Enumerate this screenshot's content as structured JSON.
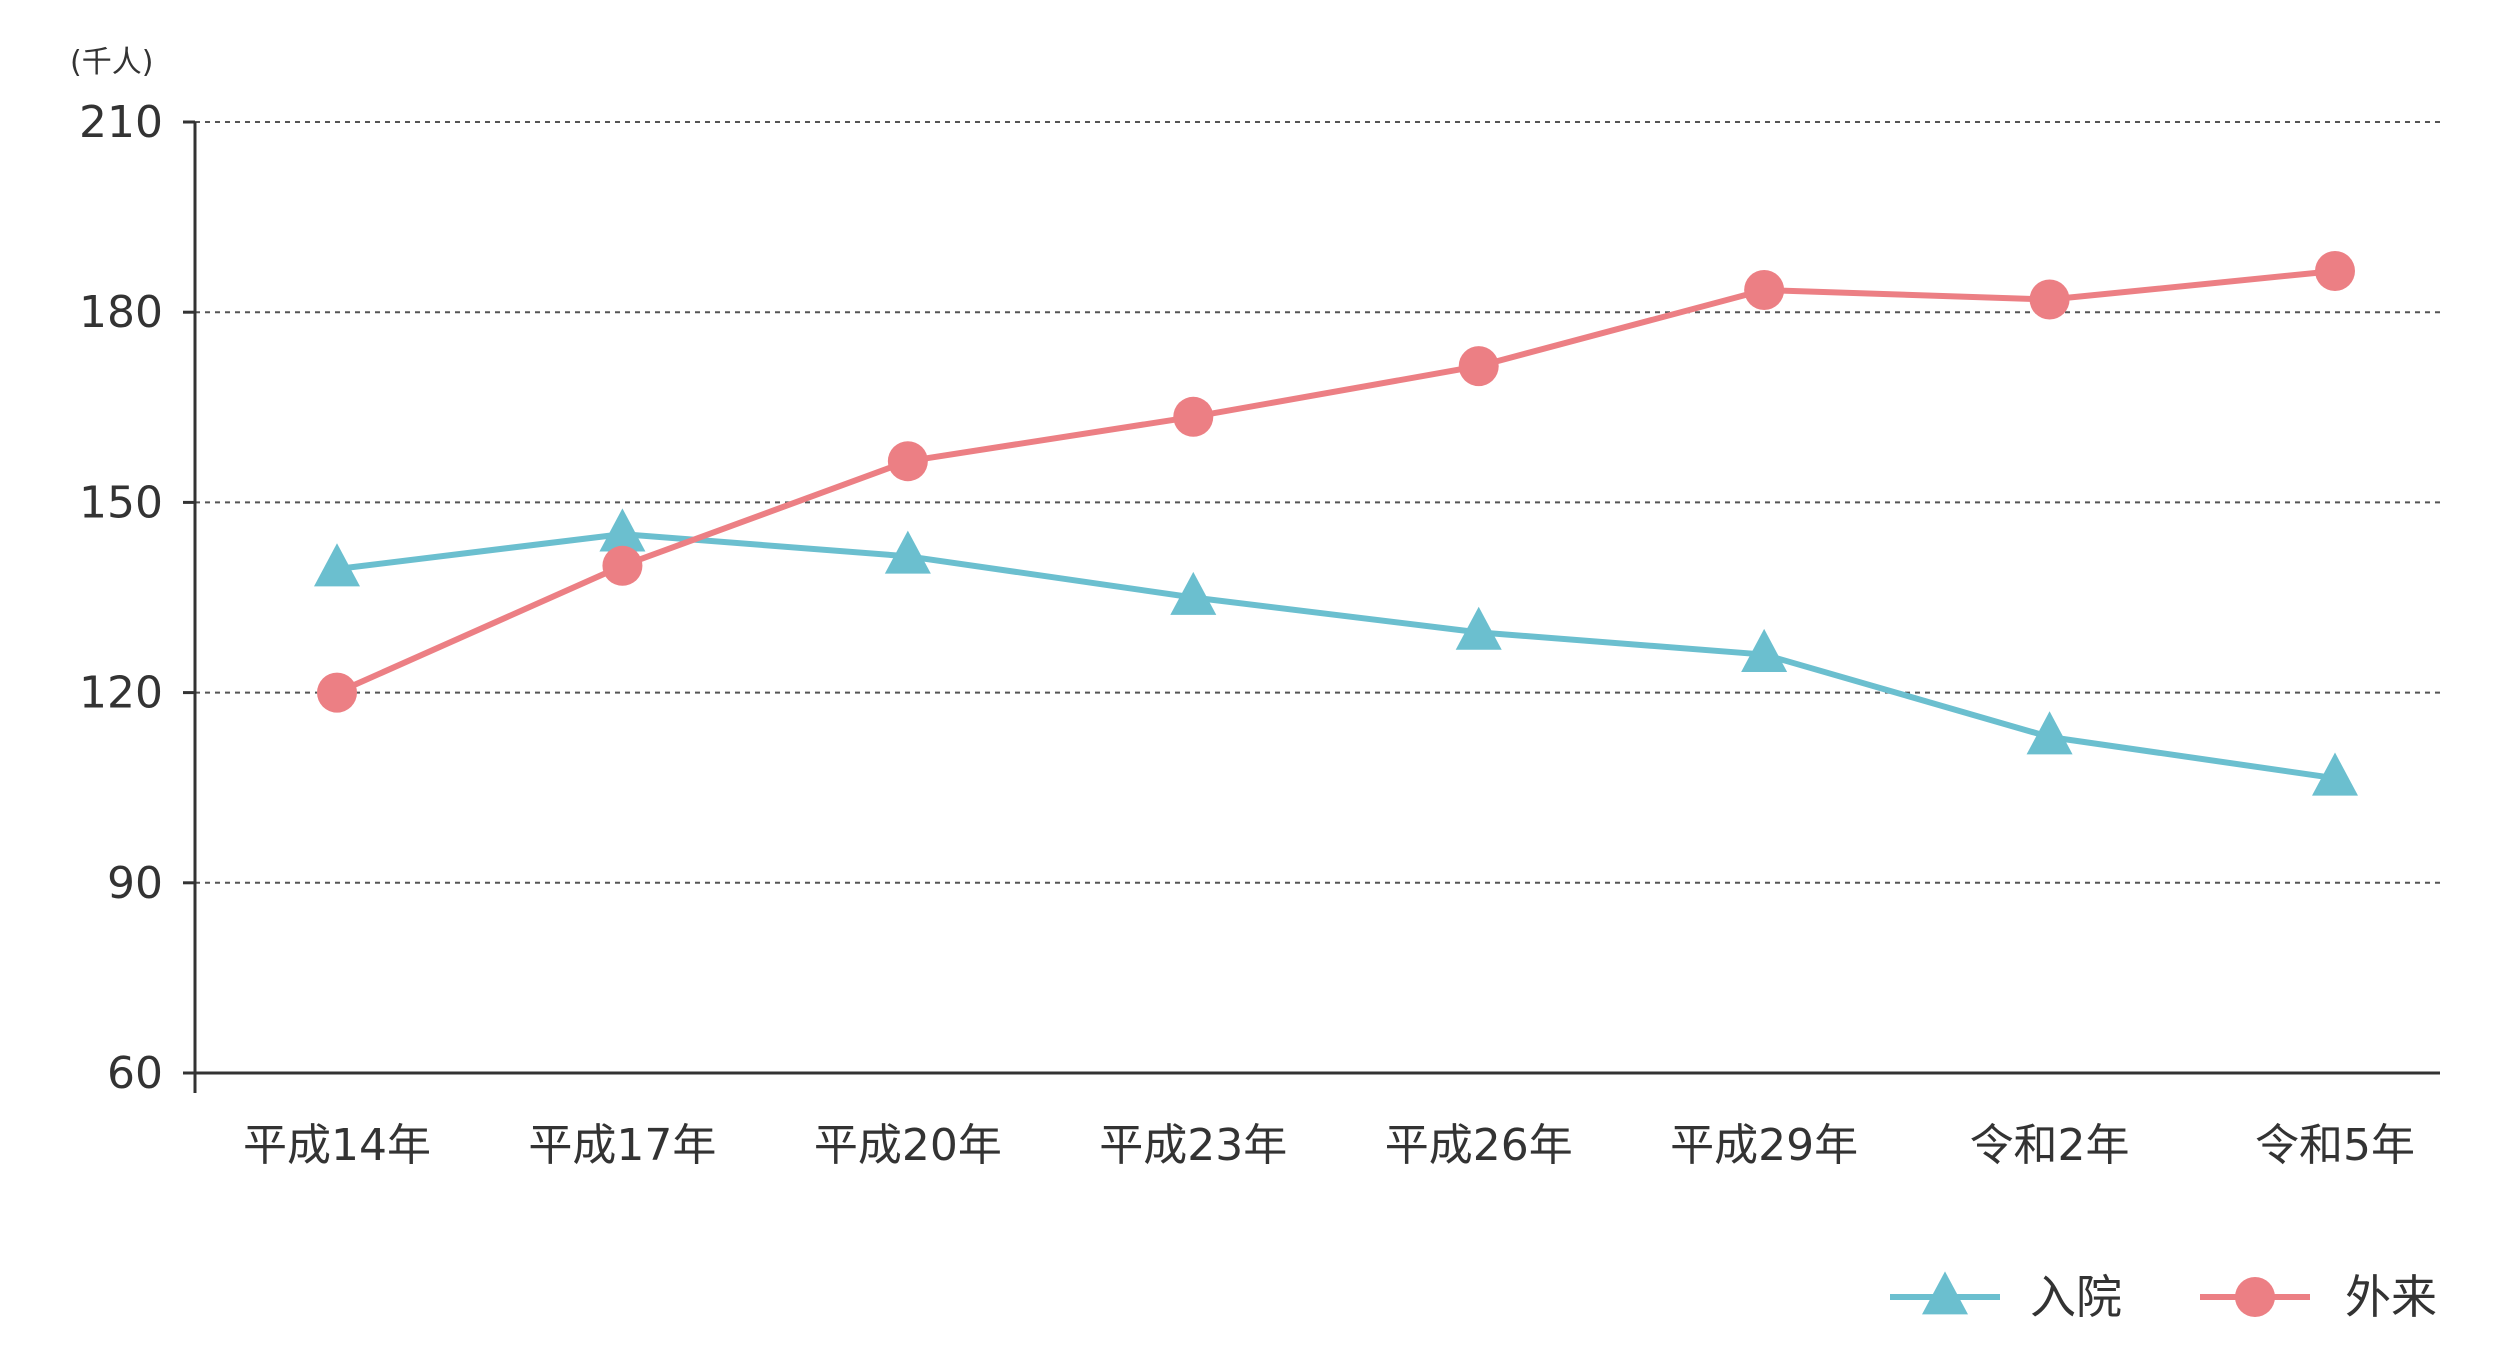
{
  "chart_data": {
    "type": "line",
    "unit_label": "(千人)",
    "categories": [
      "平成14年",
      "平成17年",
      "平成20年",
      "平成23年",
      "平成26年",
      "平成29年",
      "令和2年",
      "令和5年"
    ],
    "ylim": [
      60,
      210
    ],
    "yticks": [
      60,
      90,
      120,
      150,
      180,
      210
    ],
    "ytick_labels": [
      "60",
      "90",
      "120",
      "150",
      "180",
      "210"
    ],
    "grid": "horizontal-dotted",
    "legend_position": "bottom-right",
    "series": [
      {
        "name": "入院",
        "marker": "triangle",
        "color": "#6bbfcf",
        "values": [
          139.5,
          145,
          141.5,
          135,
          129.5,
          126,
          113,
          106.5
        ]
      },
      {
        "name": "外来",
        "marker": "circle",
        "color": "#ec7f84",
        "values": [
          120,
          140,
          156.5,
          163.5,
          171.5,
          183.5,
          182,
          186.5
        ]
      }
    ]
  }
}
